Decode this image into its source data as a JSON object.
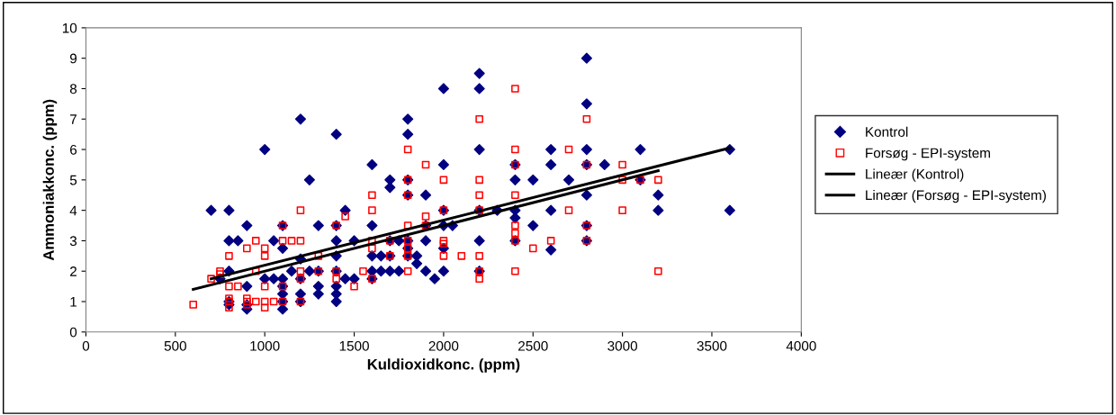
{
  "chart_data": {
    "type": "scatter",
    "xlabel": "Kuldioxidkonc. (ppm)",
    "ylabel": "Ammoniakkonc. (ppm)",
    "xlim": [
      0,
      4000
    ],
    "xticks": [
      0,
      500,
      1000,
      1500,
      2000,
      2500,
      3000,
      3500,
      4000
    ],
    "ylim": [
      0,
      10
    ],
    "yticks": [
      0,
      1,
      2,
      3,
      4,
      5,
      6,
      7,
      8,
      9,
      10
    ],
    "grid": false,
    "legend": "right",
    "series": [
      {
        "name": "Kontrol",
        "marker": "diamond",
        "color": "#000080",
        "x": [
          700,
          750,
          800,
          800,
          800,
          800,
          800,
          850,
          900,
          900,
          900,
          900,
          1000,
          1000,
          1050,
          1050,
          1100,
          1100,
          1100,
          1100,
          1100,
          1100,
          1100,
          1150,
          1200,
          1200,
          1200,
          1200,
          1200,
          1250,
          1250,
          1300,
          1300,
          1300,
          1300,
          1400,
          1400,
          1400,
          1400,
          1400,
          1400,
          1400,
          1400,
          1450,
          1450,
          1500,
          1500,
          1600,
          1600,
          1600,
          1600,
          1600,
          1650,
          1650,
          1700,
          1700,
          1700,
          1700,
          1700,
          1750,
          1750,
          1800,
          1800,
          1800,
          1800,
          1800,
          1800,
          1800,
          1850,
          1850,
          1900,
          1900,
          1900,
          1900,
          1950,
          2000,
          2000,
          2000,
          2000,
          2000,
          2000,
          2050,
          2200,
          2200,
          2200,
          2200,
          2200,
          2200,
          2300,
          2400,
          2400,
          2400,
          2400,
          2400,
          2500,
          2500,
          2600,
          2600,
          2600,
          2600,
          2700,
          2800,
          2800,
          2800,
          2800,
          2800,
          2800,
          2800,
          2900,
          3100,
          3100,
          3200,
          3200,
          3600,
          3600
        ],
        "values": [
          4,
          1.75,
          4,
          3,
          2,
          1,
          0.9,
          3,
          3.5,
          1.5,
          0.75,
          0.9,
          6,
          1.75,
          1.75,
          3,
          3.5,
          2.75,
          1.75,
          1.5,
          1.25,
          1,
          0.75,
          2,
          7,
          2.4,
          1.75,
          1.25,
          1,
          5,
          2,
          3.5,
          2,
          1.5,
          1.25,
          6.5,
          3.5,
          3,
          2.5,
          2,
          1.5,
          1.25,
          1,
          4,
          1.75,
          3,
          1.75,
          5.5,
          3.5,
          2.5,
          2,
          1.75,
          2,
          2.5,
          5,
          4.75,
          3,
          2.5,
          2,
          3,
          2,
          7,
          6.5,
          5,
          4.5,
          3,
          2.75,
          2.5,
          2.5,
          2.25,
          4.5,
          3.5,
          3,
          2,
          1.75,
          8,
          5.5,
          4,
          3.5,
          2.75,
          2,
          3.5,
          8.5,
          8,
          6,
          4,
          3,
          2,
          4,
          5.5,
          5,
          4,
          3.75,
          3,
          5,
          3.5,
          6,
          5.5,
          4,
          2.7,
          5,
          9,
          7.5,
          6,
          5.5,
          4.5,
          3.5,
          3,
          5.5,
          6,
          5,
          4.5,
          4,
          6,
          4
        ]
      },
      {
        "name": "Forsøg - EPI-system",
        "marker": "square",
        "color": "#ff0000",
        "x": [
          600,
          700,
          750,
          750,
          800,
          800,
          800,
          800,
          800,
          850,
          900,
          900,
          900,
          900,
          950,
          950,
          950,
          1000,
          1000,
          1000,
          1000,
          1000,
          1050,
          1100,
          1100,
          1100,
          1100,
          1150,
          1200,
          1200,
          1200,
          1200,
          1200,
          1300,
          1300,
          1400,
          1400,
          1400,
          1450,
          1500,
          1550,
          1600,
          1600,
          1600,
          1600,
          1600,
          1700,
          1700,
          1800,
          1800,
          1800,
          1800,
          1800,
          1800,
          1800,
          1800,
          1900,
          1900,
          1900,
          2000,
          2000,
          2000,
          2000,
          2000,
          2100,
          2200,
          2200,
          2200,
          2200,
          2200,
          2200,
          2200,
          2400,
          2400,
          2400,
          2400,
          2400,
          2400,
          2400,
          2400,
          2500,
          2600,
          2700,
          2700,
          2800,
          2800,
          2800,
          2800,
          3000,
          3000,
          3000,
          3100,
          3200,
          3200
        ],
        "values": [
          0.9,
          1.75,
          2,
          1.9,
          2.5,
          1.5,
          1.1,
          1,
          0.8,
          1.5,
          2.75,
          1.1,
          0.9,
          1,
          3,
          2,
          1,
          2.75,
          2.5,
          1.5,
          1,
          0.8,
          1,
          3.5,
          3,
          1.5,
          1,
          3,
          4,
          3,
          2,
          1.75,
          1,
          2.5,
          2,
          3.5,
          2,
          1.75,
          3.8,
          1.5,
          2,
          4.5,
          4,
          3,
          2.75,
          1.75,
          3,
          2.5,
          6,
          5,
          4.5,
          3.5,
          3,
          2.75,
          2.5,
          2,
          5.5,
          3.8,
          3.5,
          5,
          4,
          3,
          2.9,
          2.5,
          2.5,
          7,
          5,
          4.5,
          4,
          2.5,
          2,
          1.75,
          8,
          6,
          5.5,
          4.5,
          3.5,
          3.25,
          3,
          2,
          2.75,
          3,
          6,
          4,
          7,
          5.5,
          3.5,
          3,
          5.5,
          5,
          4,
          5,
          5,
          2
        ]
      },
      {
        "name": "Lineær (Kontrol)",
        "type": "line",
        "marker": "none",
        "line_style": "solid",
        "color": "#000000",
        "x": [
          700,
          3600
        ],
        "values": [
          1.75,
          6.05
        ]
      },
      {
        "name": "Lineær (Forsøg - EPI-system)",
        "type": "line",
        "marker": "none",
        "line_style": "solid",
        "color": "#000000",
        "x": [
          600,
          3200
        ],
        "values": [
          1.4,
          5.3
        ]
      }
    ]
  }
}
